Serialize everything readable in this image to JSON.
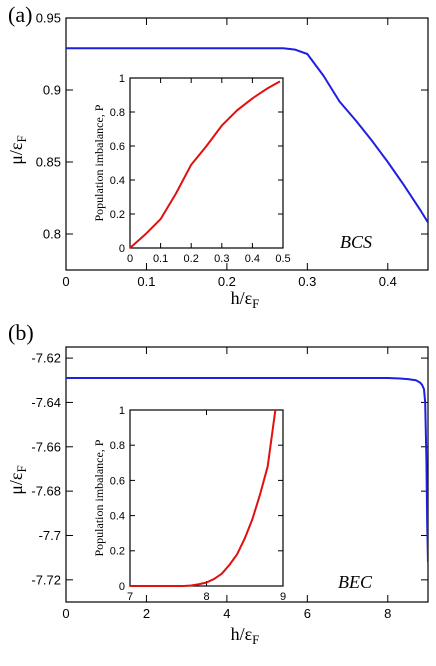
{
  "chart_data": [
    {
      "id": "a",
      "type": "line",
      "panel_label": "(a)",
      "annotation": "BCS",
      "xlabel": {
        "main": "h/ε",
        "sub": "F"
      },
      "ylabel": {
        "main": "μ/ε",
        "sub": "F"
      },
      "xlim": [
        0,
        0.45
      ],
      "ylim": [
        0.775,
        0.95
      ],
      "xticks": [
        0,
        0.1,
        0.2,
        0.3,
        0.4
      ],
      "yticks": [
        0.8,
        0.85,
        0.9,
        0.95
      ],
      "color": "#1f1fe0",
      "series": [
        {
          "x": [
            0,
            0.1,
            0.2,
            0.27,
            0.285,
            0.3,
            0.32,
            0.34,
            0.36,
            0.38,
            0.4,
            0.42,
            0.44,
            0.45
          ],
          "y": [
            0.929,
            0.929,
            0.929,
            0.929,
            0.928,
            0.925,
            0.91,
            0.892,
            0.879,
            0.865,
            0.85,
            0.834,
            0.817,
            0.808
          ]
        }
      ],
      "inset": {
        "type": "line",
        "ylabel": "Population imbalance, P",
        "xlim": [
          0,
          0.5
        ],
        "ylim": [
          0,
          1
        ],
        "xticks": [
          0,
          0.1,
          0.2,
          0.3,
          0.4,
          0.5
        ],
        "yticks": [
          0,
          0.2,
          0.4,
          0.6,
          0.8,
          1
        ],
        "color": "#e01010",
        "series": [
          {
            "x": [
              0,
              0.05,
              0.1,
              0.15,
              0.2,
              0.25,
              0.3,
              0.35,
              0.4,
              0.45,
              0.49
            ],
            "y": [
              0,
              0.08,
              0.17,
              0.32,
              0.49,
              0.6,
              0.72,
              0.81,
              0.88,
              0.94,
              0.98
            ]
          }
        ]
      }
    },
    {
      "id": "b",
      "type": "line",
      "panel_label": "(b)",
      "annotation": "BEC",
      "xlabel": {
        "main": "h/ε",
        "sub": "F"
      },
      "ylabel": {
        "main": "μ/ε",
        "sub": "F"
      },
      "xlim": [
        0,
        9
      ],
      "ylim": [
        -7.73,
        -7.615
      ],
      "xticks": [
        0,
        2,
        4,
        6,
        8
      ],
      "yticks": [
        -7.62,
        -7.64,
        -7.66,
        -7.68,
        -7.7,
        -7.72
      ],
      "color": "#1f1fe0",
      "series": [
        {
          "x": [
            0,
            2,
            4,
            6,
            7,
            8,
            8.3,
            8.5,
            8.7,
            8.8,
            8.85,
            8.9,
            8.93,
            8.96,
            8.98,
            9.0
          ],
          "y": [
            -7.629,
            -7.629,
            -7.629,
            -7.629,
            -7.629,
            -7.629,
            -7.6292,
            -7.6295,
            -7.63,
            -7.631,
            -7.632,
            -7.634,
            -7.64,
            -7.665,
            -7.695,
            -7.712
          ]
        }
      ],
      "inset": {
        "type": "line",
        "ylabel": "Population imbalance, P",
        "xlim": [
          7,
          9
        ],
        "ylim": [
          0,
          1
        ],
        "xticks": [
          7,
          8,
          9
        ],
        "yticks": [
          0,
          0.2,
          0.4,
          0.6,
          0.8,
          1
        ],
        "color": "#e01010",
        "series": [
          {
            "x": [
              7,
              7.5,
              7.7,
              7.8,
              7.9,
              8.0,
              8.1,
              8.2,
              8.3,
              8.4,
              8.5,
              8.6,
              8.7,
              8.8,
              8.9
            ],
            "y": [
              0,
              0,
              0,
              0.003,
              0.01,
              0.02,
              0.04,
              0.07,
              0.12,
              0.18,
              0.27,
              0.38,
              0.52,
              0.68,
              1.0
            ]
          }
        ]
      }
    }
  ]
}
